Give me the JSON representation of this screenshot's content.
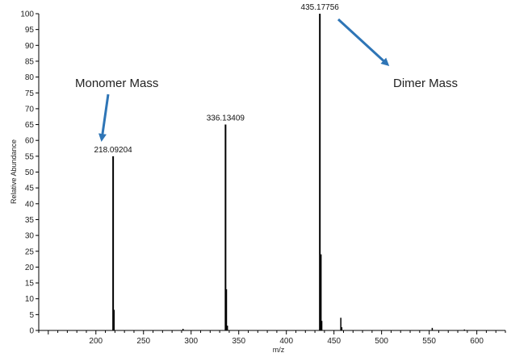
{
  "chart_data": {
    "type": "bar",
    "xlabel": "m/z",
    "ylabel": "Relative Abundance",
    "xlim": [
      140,
      630
    ],
    "ylim": [
      0,
      100
    ],
    "x_ticks": [
      200,
      250,
      300,
      350,
      400,
      450,
      500,
      550,
      600
    ],
    "y_ticks": [
      0,
      5,
      10,
      15,
      20,
      25,
      30,
      35,
      40,
      45,
      50,
      55,
      60,
      65,
      70,
      75,
      80,
      85,
      90,
      95,
      100
    ],
    "series": [
      {
        "x": [
          218.09204,
          219.1,
          291.5,
          336.13409,
          337.1,
          338.1,
          435.17756,
          436.2,
          437.2,
          457.2,
          458.2,
          553.2,
          587.0
        ],
        "values": [
          55,
          6.5,
          0.5,
          65,
          13,
          1.5,
          100,
          24,
          3,
          4,
          1,
          0.8,
          0.3
        ]
      }
    ],
    "peak_labels": [
      {
        "x": 218.09204,
        "y": 55,
        "text": "218.09204"
      },
      {
        "x": 336.13409,
        "y": 65,
        "text": "336.13409"
      },
      {
        "x": 435.17756,
        "y": 100,
        "text": "435.17756"
      }
    ],
    "annotations": [
      {
        "text": "Monomer Mass",
        "color": "#2e75b6"
      },
      {
        "text": "Dimer Mass",
        "color": "#2e75b6"
      }
    ]
  }
}
